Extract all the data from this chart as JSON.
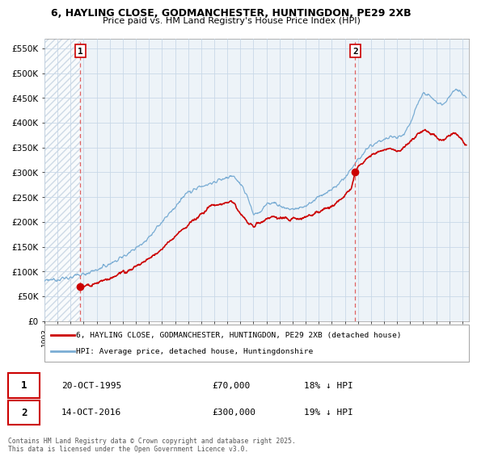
{
  "title_line1": "6, HAYLING CLOSE, GODMANCHESTER, HUNTINGDON, PE29 2XB",
  "title_line2": "Price paid vs. HM Land Registry's House Price Index (HPI)",
  "ylabel_ticks": [
    "£0",
    "£50K",
    "£100K",
    "£150K",
    "£200K",
    "£250K",
    "£300K",
    "£350K",
    "£400K",
    "£450K",
    "£500K",
    "£550K"
  ],
  "ytick_values": [
    0,
    50000,
    100000,
    150000,
    200000,
    250000,
    300000,
    350000,
    400000,
    450000,
    500000,
    550000
  ],
  "ylim": [
    0,
    570000
  ],
  "xlim_start": 1993.0,
  "xlim_end": 2025.5,
  "sale1_x": 1995.75,
  "sale1_y": 70000,
  "sale2_x": 2016.8,
  "sale2_y": 300000,
  "vline1_x": 1995.75,
  "vline2_x": 2016.8,
  "red_line_color": "#cc0000",
  "blue_line_color": "#7aadd4",
  "vline_color": "#e06060",
  "sale_dot_color": "#cc0000",
  "chart_bg_color": "#edf3f8",
  "grid_color": "#c8d8e8",
  "legend_label_red": "6, HAYLING CLOSE, GODMANCHESTER, HUNTINGDON, PE29 2XB (detached house)",
  "legend_label_blue": "HPI: Average price, detached house, Huntingdonshire",
  "table_row1": [
    "1",
    "20-OCT-1995",
    "£70,000",
    "18% ↓ HPI"
  ],
  "table_row2": [
    "2",
    "14-OCT-2016",
    "£300,000",
    "19% ↓ HPI"
  ],
  "footnote": "Contains HM Land Registry data © Crown copyright and database right 2025.\nThis data is licensed under the Open Government Licence v3.0."
}
